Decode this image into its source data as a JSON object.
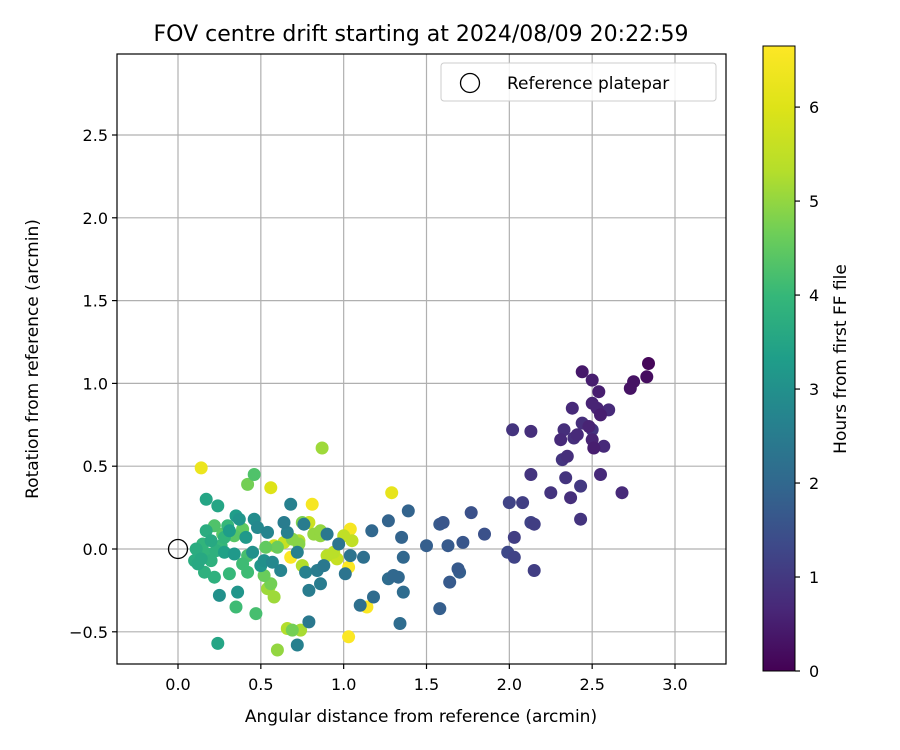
{
  "chart_data": {
    "type": "scatter",
    "title": "FOV centre drift starting at 2024/08/09 20:22:59",
    "xlabel": "Angular distance from reference (arcmin)",
    "ylabel": "Rotation from reference (arcmin)",
    "xlim": [
      -0.35,
      3.3
    ],
    "ylim": [
      -0.7,
      2.95
    ],
    "xticks": [
      "0.0",
      "0.5",
      "1.0",
      "1.5",
      "2.0",
      "2.5",
      "3.0"
    ],
    "xtick_values": [
      0.0,
      0.5,
      1.0,
      1.5,
      2.0,
      2.5,
      3.0
    ],
    "yticks": [
      "−0.5",
      "0.0",
      "0.5",
      "1.0",
      "1.5",
      "2.0",
      "2.5"
    ],
    "ytick_values": [
      -0.5,
      0.0,
      0.5,
      1.0,
      1.5,
      2.0,
      2.5
    ],
    "grid": true,
    "legend": {
      "location": "top-right",
      "label": "Reference platepar"
    },
    "reference_point": {
      "x": 0.0,
      "y": 0.0
    },
    "colorbar": {
      "label": "Hours from first FF file",
      "colormap": "viridis",
      "range": [
        0,
        6.65
      ],
      "ticks": [
        "0",
        "1",
        "2",
        "3",
        "4",
        "5",
        "6"
      ],
      "tick_values": [
        0,
        1,
        2,
        3,
        4,
        5,
        6
      ]
    },
    "points": [
      {
        "x": 2.84,
        "y": 1.12,
        "t": 0.1
      },
      {
        "x": 2.83,
        "y": 1.04,
        "t": 0.2
      },
      {
        "x": 2.75,
        "y": 1.01,
        "t": 0.3
      },
      {
        "x": 2.73,
        "y": 0.97,
        "t": 0.3
      },
      {
        "x": 2.44,
        "y": 1.07,
        "t": 0.4
      },
      {
        "x": 2.5,
        "y": 1.02,
        "t": 0.5
      },
      {
        "x": 2.54,
        "y": 0.95,
        "t": 0.5
      },
      {
        "x": 2.5,
        "y": 0.88,
        "t": 0.6
      },
      {
        "x": 2.53,
        "y": 0.85,
        "t": 0.6
      },
      {
        "x": 2.55,
        "y": 0.81,
        "t": 0.5
      },
      {
        "x": 2.6,
        "y": 0.84,
        "t": 0.7
      },
      {
        "x": 2.38,
        "y": 0.85,
        "t": 0.7
      },
      {
        "x": 2.44,
        "y": 0.76,
        "t": 0.8
      },
      {
        "x": 2.48,
        "y": 0.74,
        "t": 0.6
      },
      {
        "x": 2.41,
        "y": 0.69,
        "t": 0.7
      },
      {
        "x": 2.39,
        "y": 0.67,
        "t": 0.8
      },
      {
        "x": 2.33,
        "y": 0.72,
        "t": 0.8
      },
      {
        "x": 2.31,
        "y": 0.66,
        "t": 0.7
      },
      {
        "x": 2.5,
        "y": 0.72,
        "t": 0.9
      },
      {
        "x": 2.5,
        "y": 0.66,
        "t": 0.6
      },
      {
        "x": 2.51,
        "y": 0.61,
        "t": 0.5
      },
      {
        "x": 2.57,
        "y": 0.62,
        "t": 0.7
      },
      {
        "x": 2.35,
        "y": 0.56,
        "t": 0.8
      },
      {
        "x": 2.32,
        "y": 0.54,
        "t": 0.9
      },
      {
        "x": 2.13,
        "y": 0.71,
        "t": 0.8
      },
      {
        "x": 2.02,
        "y": 0.72,
        "t": 0.9
      },
      {
        "x": 2.13,
        "y": 0.45,
        "t": 0.9
      },
      {
        "x": 2.34,
        "y": 0.43,
        "t": 0.9
      },
      {
        "x": 2.55,
        "y": 0.45,
        "t": 0.7
      },
      {
        "x": 2.43,
        "y": 0.38,
        "t": 1.0
      },
      {
        "x": 2.25,
        "y": 0.34,
        "t": 0.9
      },
      {
        "x": 2.37,
        "y": 0.31,
        "t": 0.8
      },
      {
        "x": 2.68,
        "y": 0.34,
        "t": 0.7
      },
      {
        "x": 2.43,
        "y": 0.18,
        "t": 0.9
      },
      {
        "x": 2.0,
        "y": 0.28,
        "t": 1.2
      },
      {
        "x": 2.08,
        "y": 0.28,
        "t": 1.1
      },
      {
        "x": 2.13,
        "y": 0.16,
        "t": 1.2
      },
      {
        "x": 2.15,
        "y": 0.15,
        "t": 1.1
      },
      {
        "x": 2.03,
        "y": 0.07,
        "t": 1.1
      },
      {
        "x": 1.99,
        "y": -0.02,
        "t": 1.3
      },
      {
        "x": 2.03,
        "y": -0.05,
        "t": 1.2
      },
      {
        "x": 2.15,
        "y": -0.13,
        "t": 1.1
      },
      {
        "x": 1.85,
        "y": 0.09,
        "t": 1.5
      },
      {
        "x": 1.77,
        "y": 0.22,
        "t": 1.5
      },
      {
        "x": 1.72,
        "y": 0.04,
        "t": 1.6
      },
      {
        "x": 1.63,
        "y": 0.02,
        "t": 1.7
      },
      {
        "x": 1.58,
        "y": 0.15,
        "t": 1.7
      },
      {
        "x": 1.6,
        "y": 0.16,
        "t": 1.6
      },
      {
        "x": 1.5,
        "y": 0.02,
        "t": 1.8
      },
      {
        "x": 1.69,
        "y": -0.12,
        "t": 1.7
      },
      {
        "x": 1.7,
        "y": -0.14,
        "t": 1.8
      },
      {
        "x": 1.64,
        "y": -0.2,
        "t": 1.7
      },
      {
        "x": 1.58,
        "y": -0.36,
        "t": 1.8
      },
      {
        "x": 1.39,
        "y": 0.23,
        "t": 1.9
      },
      {
        "x": 1.27,
        "y": 0.17,
        "t": 1.9
      },
      {
        "x": 1.17,
        "y": 0.11,
        "t": 2.0
      },
      {
        "x": 1.35,
        "y": 0.07,
        "t": 1.9
      },
      {
        "x": 1.36,
        "y": -0.05,
        "t": 2.0
      },
      {
        "x": 1.3,
        "y": -0.16,
        "t": 2.0
      },
      {
        "x": 1.27,
        "y": -0.18,
        "t": 2.1
      },
      {
        "x": 1.33,
        "y": -0.17,
        "t": 2.0
      },
      {
        "x": 1.36,
        "y": -0.26,
        "t": 2.1
      },
      {
        "x": 1.18,
        "y": -0.29,
        "t": 2.1
      },
      {
        "x": 1.1,
        "y": -0.34,
        "t": 2.2
      },
      {
        "x": 1.34,
        "y": -0.45,
        "t": 2.1
      },
      {
        "x": 1.12,
        "y": -0.05,
        "t": 2.2
      },
      {
        "x": 1.04,
        "y": -0.04,
        "t": 2.3
      },
      {
        "x": 1.01,
        "y": -0.15,
        "t": 2.3
      },
      {
        "x": 0.97,
        "y": 0.03,
        "t": 2.3
      },
      {
        "x": 0.9,
        "y": 0.09,
        "t": 2.4
      },
      {
        "x": 0.88,
        "y": -0.1,
        "t": 2.4
      },
      {
        "x": 0.86,
        "y": -0.21,
        "t": 2.5
      },
      {
        "x": 0.84,
        "y": -0.13,
        "t": 2.5
      },
      {
        "x": 0.79,
        "y": -0.25,
        "t": 2.5
      },
      {
        "x": 0.79,
        "y": -0.44,
        "t": 2.4
      },
      {
        "x": 0.76,
        "y": 0.15,
        "t": 2.5
      },
      {
        "x": 0.68,
        "y": 0.27,
        "t": 2.6
      },
      {
        "x": 0.64,
        "y": 0.16,
        "t": 2.5
      },
      {
        "x": 0.66,
        "y": 0.1,
        "t": 2.6
      },
      {
        "x": 0.72,
        "y": -0.02,
        "t": 2.6
      },
      {
        "x": 0.77,
        "y": -0.14,
        "t": 2.6
      },
      {
        "x": 0.62,
        "y": -0.13,
        "t": 2.7
      },
      {
        "x": 0.72,
        "y": -0.58,
        "t": 2.6
      },
      {
        "x": 0.54,
        "y": 0.1,
        "t": 2.7
      },
      {
        "x": 0.48,
        "y": 0.13,
        "t": 2.8
      },
      {
        "x": 0.46,
        "y": 0.18,
        "t": 2.9
      },
      {
        "x": 0.57,
        "y": -0.08,
        "t": 2.8
      },
      {
        "x": 0.52,
        "y": -0.07,
        "t": 3.0
      },
      {
        "x": 0.5,
        "y": -0.1,
        "t": 3.1
      },
      {
        "x": 0.45,
        "y": -0.02,
        "t": 3.0
      },
      {
        "x": 0.41,
        "y": 0.07,
        "t": 3.2
      },
      {
        "x": 0.37,
        "y": 0.18,
        "t": 3.1
      },
      {
        "x": 0.35,
        "y": 0.2,
        "t": 3.3
      },
      {
        "x": 0.34,
        "y": -0.03,
        "t": 3.2
      },
      {
        "x": 0.31,
        "y": 0.11,
        "t": 3.3
      },
      {
        "x": 0.28,
        "y": -0.02,
        "t": 3.4
      },
      {
        "x": 0.36,
        "y": -0.26,
        "t": 3.1
      },
      {
        "x": 0.25,
        "y": -0.28,
        "t": 3.0
      },
      {
        "x": 0.24,
        "y": 0.26,
        "t": 3.5
      },
      {
        "x": 0.17,
        "y": 0.3,
        "t": 3.5
      },
      {
        "x": 0.2,
        "y": 0.05,
        "t": 3.6
      },
      {
        "x": 0.17,
        "y": 0.11,
        "t": 3.7
      },
      {
        "x": 0.14,
        "y": -0.06,
        "t": 3.6
      },
      {
        "x": 0.12,
        "y": -0.09,
        "t": 3.6
      },
      {
        "x": 0.1,
        "y": -0.07,
        "t": 3.7
      },
      {
        "x": 0.16,
        "y": -0.14,
        "t": 3.8
      },
      {
        "x": 0.11,
        "y": 0.0,
        "t": 3.7
      },
      {
        "x": 0.2,
        "y": -0.07,
        "t": 3.8
      },
      {
        "x": 0.23,
        "y": -0.01,
        "t": 3.8
      },
      {
        "x": 0.18,
        "y": -0.03,
        "t": 3.9
      },
      {
        "x": 0.15,
        "y": 0.03,
        "t": 3.9
      },
      {
        "x": 0.22,
        "y": -0.17,
        "t": 3.8
      },
      {
        "x": 0.24,
        "y": -0.57,
        "t": 3.5
      },
      {
        "x": 0.28,
        "y": 0.07,
        "t": 3.9
      },
      {
        "x": 0.3,
        "y": 0.14,
        "t": 4.0
      },
      {
        "x": 0.26,
        "y": 0.02,
        "t": 4.0
      },
      {
        "x": 0.31,
        "y": -0.15,
        "t": 4.0
      },
      {
        "x": 0.35,
        "y": -0.35,
        "t": 4.1
      },
      {
        "x": 0.39,
        "y": -0.09,
        "t": 4.1
      },
      {
        "x": 0.42,
        "y": -0.14,
        "t": 4.1
      },
      {
        "x": 0.42,
        "y": -0.04,
        "t": 4.2
      },
      {
        "x": 0.47,
        "y": -0.39,
        "t": 4.2
      },
      {
        "x": 0.46,
        "y": 0.45,
        "t": 4.3
      },
      {
        "x": 0.22,
        "y": 0.14,
        "t": 4.3
      },
      {
        "x": 0.34,
        "y": 0.08,
        "t": 4.4
      },
      {
        "x": 0.27,
        "y": 0.09,
        "t": 4.4
      },
      {
        "x": 0.39,
        "y": 0.12,
        "t": 4.5
      },
      {
        "x": 0.53,
        "y": 0.01,
        "t": 4.5
      },
      {
        "x": 0.52,
        "y": -0.16,
        "t": 4.6
      },
      {
        "x": 0.6,
        "y": 0.01,
        "t": 4.6
      },
      {
        "x": 0.56,
        "y": -0.21,
        "t": 4.7
      },
      {
        "x": 0.42,
        "y": 0.39,
        "t": 4.7
      },
      {
        "x": 0.75,
        "y": 0.16,
        "t": 4.8
      },
      {
        "x": 0.69,
        "y": -0.49,
        "t": 4.7
      },
      {
        "x": 0.73,
        "y": 0.03,
        "t": 4.9
      },
      {
        "x": 0.69,
        "y": 0.06,
        "t": 4.9
      },
      {
        "x": 0.82,
        "y": 0.09,
        "t": 5.0
      },
      {
        "x": 0.86,
        "y": 0.08,
        "t": 5.0
      },
      {
        "x": 0.86,
        "y": 0.11,
        "t": 5.0
      },
      {
        "x": 0.6,
        "y": -0.61,
        "t": 5.0
      },
      {
        "x": 0.87,
        "y": 0.61,
        "t": 5.1
      },
      {
        "x": 0.54,
        "y": -0.24,
        "t": 5.1
      },
      {
        "x": 0.58,
        "y": -0.29,
        "t": 5.1
      },
      {
        "x": 0.55,
        "y": -0.23,
        "t": 5.2
      },
      {
        "x": 0.74,
        "y": -0.49,
        "t": 5.2
      },
      {
        "x": 0.66,
        "y": -0.48,
        "t": 5.3
      },
      {
        "x": 0.73,
        "y": 0.05,
        "t": 5.3
      },
      {
        "x": 0.75,
        "y": -0.1,
        "t": 5.3
      },
      {
        "x": 0.94,
        "y": -0.02,
        "t": 5.4
      },
      {
        "x": 0.9,
        "y": -0.04,
        "t": 5.4
      },
      {
        "x": 1.0,
        "y": 0.08,
        "t": 5.5
      },
      {
        "x": 1.05,
        "y": 0.05,
        "t": 5.5
      },
      {
        "x": 0.64,
        "y": 0.04,
        "t": 5.6
      },
      {
        "x": 0.58,
        "y": 0.02,
        "t": 5.7
      },
      {
        "x": 0.96,
        "y": -0.06,
        "t": 5.6
      },
      {
        "x": 0.79,
        "y": 0.16,
        "t": 5.7
      },
      {
        "x": 0.56,
        "y": 0.37,
        "t": 6.0
      },
      {
        "x": 1.29,
        "y": 0.34,
        "t": 6.2
      },
      {
        "x": 0.14,
        "y": 0.49,
        "t": 6.3
      },
      {
        "x": 0.81,
        "y": 0.27,
        "t": 6.5
      },
      {
        "x": 1.04,
        "y": 0.12,
        "t": 6.5
      },
      {
        "x": 0.68,
        "y": -0.05,
        "t": 6.6
      },
      {
        "x": 1.03,
        "y": -0.11,
        "t": 6.6
      },
      {
        "x": 1.14,
        "y": -0.35,
        "t": 6.6
      },
      {
        "x": 1.03,
        "y": -0.53,
        "t": 6.6
      }
    ]
  }
}
